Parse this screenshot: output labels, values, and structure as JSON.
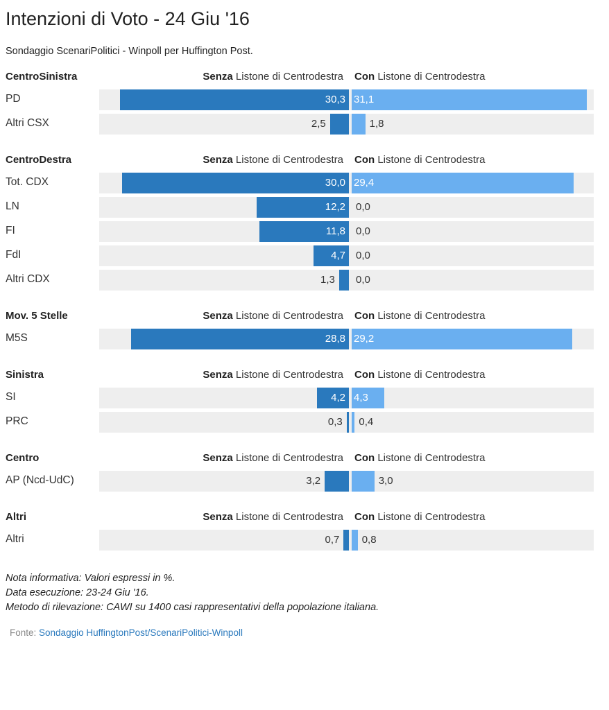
{
  "title": "Intenzioni di Voto - 24 Giu '16",
  "subtitle": "Sondaggio ScenariPolitici - Winpoll per Huffington Post.",
  "column_headers": {
    "left_bold": "Senza",
    "left_rest": " Listone di Centrodestra",
    "right_bold": "Con",
    "right_rest": " Listone di Centrodestra"
  },
  "colors": {
    "left_bar": "#2a79bd",
    "right_bar": "#6aaff0",
    "track": "#eeeeee"
  },
  "chart_data": {
    "type": "bar",
    "orientation": "horizontal-diverging",
    "unit": "%",
    "series": [
      {
        "name": "Senza Listone di Centrodestra"
      },
      {
        "name": "Con Listone di Centrodestra"
      }
    ],
    "groups": [
      {
        "name": "CentroSinistra",
        "rows": [
          {
            "label": "PD",
            "senza": 30.3,
            "con": 31.1,
            "senza_label": "30,3",
            "con_label": "31,1"
          },
          {
            "label": "Altri CSX",
            "senza": 2.5,
            "con": 1.8,
            "senza_label": "2,5",
            "con_label": "1,8"
          }
        ]
      },
      {
        "name": "CentroDestra",
        "rows": [
          {
            "label": "Tot. CDX",
            "senza": 30.0,
            "con": 29.4,
            "senza_label": "30,0",
            "con_label": "29,4"
          },
          {
            "label": "LN",
            "senza": 12.2,
            "con": 0.0,
            "senza_label": "12,2",
            "con_label": "0,0"
          },
          {
            "label": "FI",
            "senza": 11.8,
            "con": 0.0,
            "senza_label": "11,8",
            "con_label": "0,0"
          },
          {
            "label": "FdI",
            "senza": 4.7,
            "con": 0.0,
            "senza_label": "4,7",
            "con_label": "0,0"
          },
          {
            "label": "Altri CDX",
            "senza": 1.3,
            "con": 0.0,
            "senza_label": "1,3",
            "con_label": "0,0"
          }
        ]
      },
      {
        "name": "Mov. 5 Stelle",
        "rows": [
          {
            "label": "M5S",
            "senza": 28.8,
            "con": 29.2,
            "senza_label": "28,8",
            "con_label": "29,2"
          }
        ]
      },
      {
        "name": "Sinistra",
        "rows": [
          {
            "label": "SI",
            "senza": 4.2,
            "con": 4.3,
            "senza_label": "4,2",
            "con_label": "4,3"
          },
          {
            "label": "PRC",
            "senza": 0.3,
            "con": 0.4,
            "senza_label": "0,3",
            "con_label": "0,4"
          }
        ]
      },
      {
        "name": "Centro",
        "rows": [
          {
            "label": "AP (Ncd-UdC)",
            "senza": 3.2,
            "con": 3.0,
            "senza_label": "3,2",
            "con_label": "3,0"
          }
        ]
      },
      {
        "name": "Altri",
        "rows": [
          {
            "label": "Altri",
            "senza": 0.7,
            "con": 0.8,
            "senza_label": "0,7",
            "con_label": "0,8"
          }
        ]
      }
    ]
  },
  "notes": [
    "Nota informativa: Valori espressi in %.",
    "Data esecuzione: 23-24 Giu '16.",
    "Metodo di rilevazione: CAWI su 1400 casi rappresentativi della popolazione italiana."
  ],
  "source": {
    "prefix": "Fonte: ",
    "link_text": "Sondaggio HuffingtonPost/ScenariPolitici-Winpoll"
  }
}
